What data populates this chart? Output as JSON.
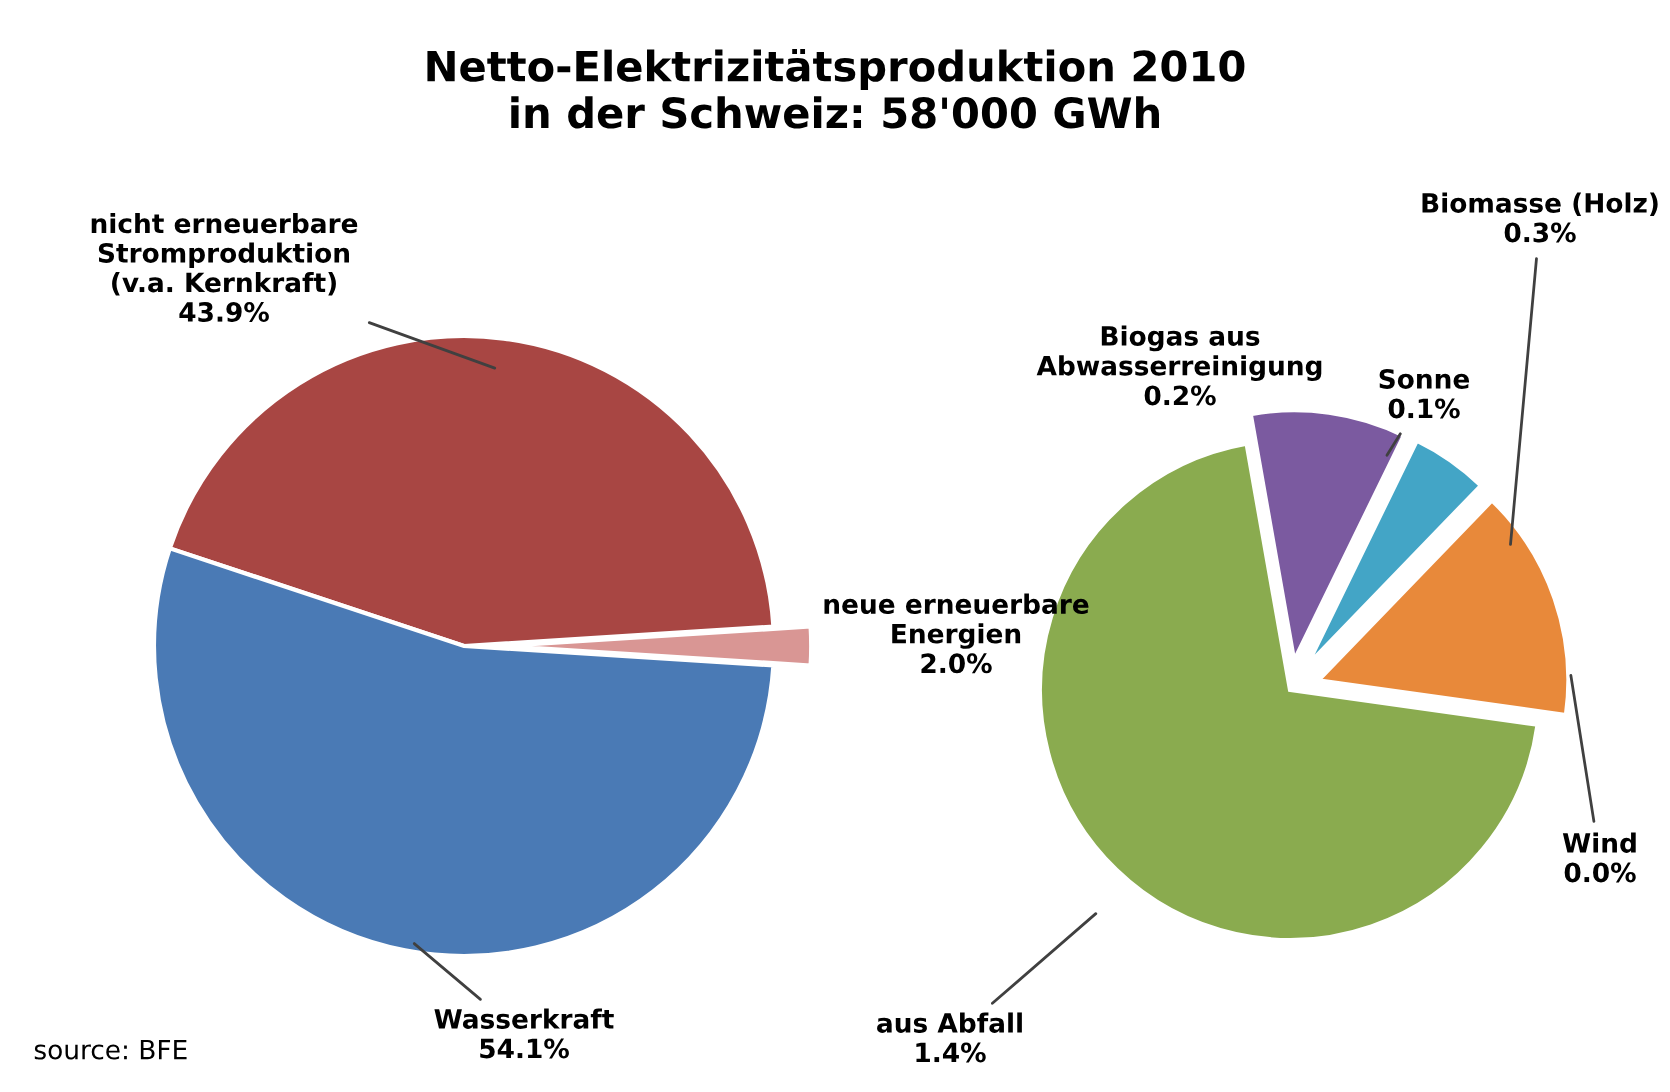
{
  "chart_data": [
    {
      "type": "pie",
      "title": "Netto-Elektrizitätsproduktion 2010\nin der Schweiz: 58'000 GWh",
      "annotations": [
        "source: BFE"
      ],
      "categories": [
        "neue erneuerbare\nEnergien",
        "nicht erneuerbare\nStromproduktion\n(v.a. Kernkraft)",
        "Wasserkraft"
      ],
      "values": [
        2.0,
        43.9,
        54.1
      ],
      "value_labels": [
        "2.0%",
        "43.9%",
        "54.1%"
      ],
      "colors": [
        "#d99694",
        "#a84643",
        "#4a7ab5"
      ]
    },
    {
      "type": "pie",
      "categories": [
        "Wind",
        "Biomasse (Holz)",
        "Sonne",
        "Biogas aus\nAbwasserreinigung",
        "aus Abfall"
      ],
      "values": [
        0.0,
        0.3,
        0.1,
        0.2,
        1.4
      ],
      "value_labels": [
        "0.0%",
        "0.3%",
        "0.1%",
        "0.2%",
        "1.4%"
      ],
      "colors": [
        "#9bb5e0",
        "#e8893a",
        "#43a5c6",
        "#7b5aa0",
        "#8aab4f"
      ]
    }
  ]
}
